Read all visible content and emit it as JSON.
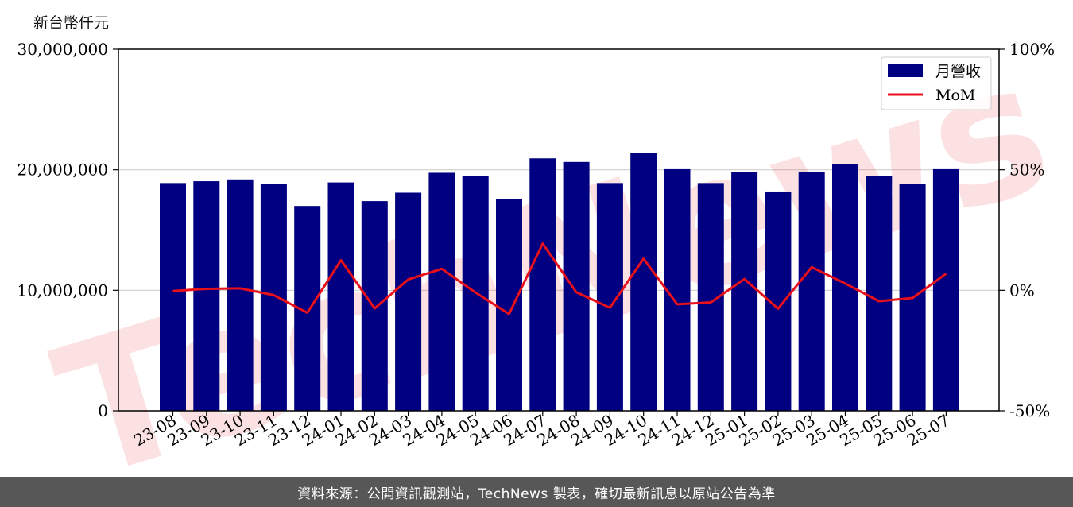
{
  "chart_data": {
    "type": "bar",
    "ylabel": "新台幣仟元",
    "categories": [
      "23-08",
      "23-09",
      "23-10",
      "23-11",
      "23-12",
      "24-01",
      "24-02",
      "24-03",
      "24-04",
      "24-05",
      "24-06",
      "24-07",
      "24-08",
      "24-09",
      "24-10",
      "24-11",
      "24-12",
      "25-01",
      "25-02",
      "25-03",
      "25-04",
      "25-05",
      "25-06",
      "25-07"
    ],
    "series": [
      {
        "name": "月營收",
        "axis": "left",
        "type": "bar",
        "color": "#000080",
        "values": [
          18900000,
          19050000,
          19200000,
          18800000,
          17000000,
          18950000,
          17400000,
          18100000,
          19750000,
          19500000,
          17550000,
          20950000,
          20650000,
          18900000,
          21400000,
          20050000,
          18900000,
          19800000,
          18200000,
          19850000,
          20450000,
          19450000,
          18800000,
          20050000
        ]
      },
      {
        "name": "MoM",
        "axis": "right",
        "type": "line",
        "color": "#e8101a",
        "values": [
          -0.3,
          0.6,
          0.8,
          -2.0,
          -9.3,
          12.5,
          -7.5,
          4.5,
          8.9,
          -0.9,
          -9.8,
          19.4,
          -0.8,
          -7.2,
          13.1,
          -5.8,
          -5.0,
          4.7,
          -7.6,
          9.6,
          2.8,
          -4.5,
          -3.2,
          6.9
        ]
      }
    ],
    "ylim_left": [
      0,
      30000000
    ],
    "ylim_right": [
      -50,
      100
    ],
    "yticks_left": [
      "0",
      "10,000,000",
      "20,000,000",
      "30,000,000"
    ],
    "yticks_right": [
      "-50%",
      "0%",
      "50%",
      "100%"
    ],
    "grid": "horizontal",
    "legend_position": "top-right"
  },
  "footer": {
    "text": "資料來源：公開資訊觀測站，TechNews 製表，確切最新訊息以原站公告為準"
  },
  "watermark": {
    "text": "TechNews"
  }
}
